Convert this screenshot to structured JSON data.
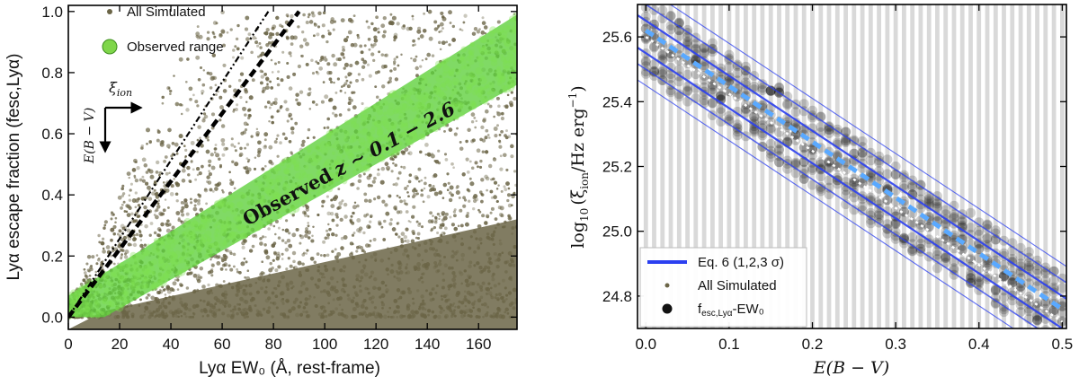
{
  "chart_data": [
    {
      "type": "scatter",
      "xlabel": "Lyα EW₀ (Å, rest-frame)",
      "ylabel": "Lyα escape fraction (fesc,Lyα)",
      "xlim": [
        0,
        175
      ],
      "ylim": [
        -0.04,
        1.02
      ],
      "xticks": [
        "0",
        "20",
        "40",
        "60",
        "80",
        "100",
        "120",
        "140",
        "160"
      ],
      "yticks": [
        "0.0",
        "0.2",
        "0.4",
        "0.6",
        "0.8",
        "1.0"
      ],
      "legend": {
        "position": "top-left",
        "entries": [
          {
            "label": "All Simulated",
            "color": "#6b6547"
          },
          {
            "label": "Observed range",
            "color": "#7fd64a"
          }
        ]
      },
      "series": [
        {
          "name": "All Simulated",
          "color": "#6b6547",
          "x_range": [
            0,
            175
          ],
          "y_range": [
            0,
            1.0
          ]
        },
        {
          "name": "Observed range",
          "color": "#5ccf3a",
          "lower_edge": {
            "x": [
              0,
              14,
              175
            ],
            "y": [
              0.0,
              0.0,
              0.76
            ]
          },
          "upper_edge": {
            "x": [
              0,
              175
            ],
            "y": [
              0.07,
              0.99
            ]
          }
        }
      ],
      "reference_lines": [
        {
          "style": "dashed",
          "x": [
            0,
            90
          ],
          "y": [
            0.0,
            1.0
          ]
        },
        {
          "style": "dash-dot-dot",
          "x": [
            0,
            78
          ],
          "y": [
            0.0,
            1.0
          ]
        }
      ],
      "annotations": {
        "band_label_word": "Observed",
        "band_label_z": "z ∼ 0.1 − 2.6",
        "arrow_x_label": "ξ",
        "arrow_x_sub": "ion",
        "arrow_y_label": "E(B − V)"
      },
      "grid": false
    },
    {
      "type": "scatter",
      "xlabel": "E(B − V)",
      "ylabel_main": "log",
      "ylabel_sub": "10",
      "ylabel_rest": "(ξ",
      "ylabel_sub2": "ion",
      "ylabel_unit": "/Hz erg",
      "ylabel_exp": "−1",
      "ylabel_close": ")",
      "xlim": [
        -0.01,
        0.505
      ],
      "ylim": [
        24.7,
        25.7
      ],
      "xticks": [
        "0.0",
        "0.1",
        "0.2",
        "0.3",
        "0.4",
        "0.5"
      ],
      "yticks": [
        "24.8",
        "25.0",
        "25.2",
        "25.4",
        "25.6"
      ],
      "legend": {
        "position": "bottom-left",
        "entries": [
          {
            "label": "Eq. 6 (1,2,3 σ)",
            "color": "#2b3ff0"
          },
          {
            "label": "All Simulated",
            "color": "#6b6547"
          },
          {
            "label": "f",
            "sub": "esc,Lyα",
            "suffix": "-EW₀",
            "color": "#000000"
          }
        ]
      },
      "series": [
        {
          "name": "Eq. 6 (1,2,3 σ)",
          "color": "#2b3ff0",
          "x": [
            0.0,
            0.5
          ],
          "y": [
            25.6,
            24.75
          ],
          "sigma": [
            0.05,
            0.1,
            0.15
          ]
        },
        {
          "name": "fesc,Lyα-EW₀",
          "color": "#000000",
          "x": [
            0.0,
            0.5
          ],
          "y": [
            25.6,
            24.75
          ]
        },
        {
          "name": "light-blue dashed fit",
          "color": "#5aa9ff",
          "x": [
            0.0,
            0.5
          ],
          "y": [
            25.62,
            24.76
          ]
        },
        {
          "name": "white dotted fit",
          "color": "#ffffff",
          "x": [
            0.0,
            0.5
          ],
          "y": [
            25.6,
            24.72
          ]
        }
      ],
      "grid": false
    }
  ]
}
